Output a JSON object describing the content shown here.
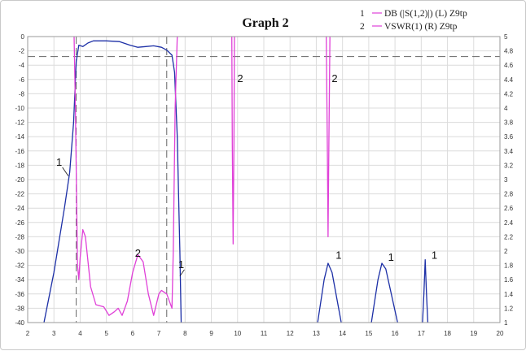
{
  "chart_data": {
    "type": "line",
    "title": "Graph 2",
    "xlim": [
      2,
      20
    ],
    "x_ticks": [
      2,
      3,
      4,
      5,
      6,
      7,
      8,
      9,
      10,
      11,
      12,
      13,
      14,
      15,
      16,
      17,
      18,
      19,
      20
    ],
    "y_left": {
      "lim": [
        -40,
        0
      ],
      "ticks": [
        0,
        -2,
        -4,
        -6,
        -8,
        -10,
        -12,
        -14,
        -16,
        -18,
        -20,
        -22,
        -24,
        -26,
        -28,
        -30,
        -32,
        -34,
        -36,
        -38,
        -40
      ]
    },
    "y_right": {
      "lim": [
        1,
        5
      ],
      "ticks": [
        5,
        4.8,
        4.6,
        4.4,
        4.2,
        4,
        3.8,
        3.6,
        3.4,
        3.2,
        3,
        2.8,
        2.6,
        2.4,
        2.2,
        2,
        1.8,
        1.6,
        1.4,
        1.2,
        1
      ]
    },
    "grid": true,
    "legend_position": "top-right",
    "legend": [
      {
        "number": "1",
        "label": "DB (|S(1,2)|) (L) Z9tp"
      },
      {
        "number": "2",
        "label": "VSWR(1) (R) Z9tp"
      }
    ],
    "colors": {
      "series1": "#1c2fa6",
      "series2": "#e040d8",
      "reference": "#666666",
      "grid": "#dcdcdc"
    },
    "reference_lines": {
      "horizontal_left_db": -2.8,
      "vertical_x": [
        3.85,
        7.3
      ]
    },
    "series": [
      {
        "name": "DB (|S(1,2)|) (L) Z9tp",
        "axis": "left",
        "segments": [
          [
            [
              2.62,
              -40
            ],
            [
              3.0,
              -33
            ],
            [
              3.4,
              -24
            ],
            [
              3.6,
              -19
            ],
            [
              3.75,
              -12
            ],
            [
              3.85,
              -3.5
            ],
            [
              3.95,
              -1.2
            ],
            [
              4.1,
              -1.4
            ],
            [
              4.3,
              -0.9
            ],
            [
              4.5,
              -0.6
            ],
            [
              5.0,
              -0.6
            ],
            [
              5.5,
              -0.7
            ],
            [
              5.9,
              -1.2
            ],
            [
              6.2,
              -1.5
            ],
            [
              6.5,
              -1.4
            ],
            [
              6.8,
              -1.3
            ],
            [
              7.1,
              -1.5
            ],
            [
              7.3,
              -1.9
            ],
            [
              7.5,
              -2.6
            ],
            [
              7.6,
              -5
            ],
            [
              7.7,
              -14
            ],
            [
              7.8,
              -30
            ],
            [
              7.85,
              -40
            ]
          ],
          [
            [
              13.05,
              -40
            ],
            [
              13.3,
              -34
            ],
            [
              13.45,
              -31.7
            ],
            [
              13.6,
              -33
            ],
            [
              13.95,
              -40
            ]
          ],
          [
            [
              15.1,
              -40
            ],
            [
              15.35,
              -34
            ],
            [
              15.5,
              -31.7
            ],
            [
              15.65,
              -32.5
            ],
            [
              16.1,
              -40
            ]
          ],
          [
            [
              17.05,
              -40
            ],
            [
              17.1,
              -36
            ],
            [
              17.15,
              -31.2
            ],
            [
              17.2,
              -36
            ],
            [
              17.25,
              -40
            ]
          ]
        ]
      },
      {
        "name": "VSWR(1) (R) Z9tp",
        "axis": "right",
        "segments": [
          [
            [
              3.77,
              5
            ],
            [
              3.82,
              4.0
            ],
            [
              3.9,
              1.8
            ],
            [
              3.95,
              1.6
            ],
            [
              4.0,
              1.9
            ],
            [
              4.1,
              2.3
            ],
            [
              4.2,
              2.2
            ],
            [
              4.4,
              1.5
            ],
            [
              4.6,
              1.25
            ],
            [
              4.9,
              1.22
            ],
            [
              5.1,
              1.1
            ],
            [
              5.3,
              1.15
            ],
            [
              5.45,
              1.2
            ],
            [
              5.6,
              1.1
            ],
            [
              5.8,
              1.3
            ],
            [
              6.0,
              1.7
            ],
            [
              6.2,
              1.95
            ],
            [
              6.4,
              1.85
            ],
            [
              6.6,
              1.4
            ],
            [
              6.8,
              1.1
            ],
            [
              7.0,
              1.4
            ],
            [
              7.1,
              1.45
            ],
            [
              7.3,
              1.4
            ],
            [
              7.5,
              1.2
            ],
            [
              7.55,
              2.0
            ],
            [
              7.62,
              4.0
            ],
            [
              7.7,
              5
            ]
          ],
          [
            [
              9.78,
              5
            ],
            [
              9.8,
              3.5
            ],
            [
              9.83,
              2.1
            ],
            [
              9.86,
              3.5
            ],
            [
              9.88,
              5
            ]
          ],
          [
            [
              13.38,
              5
            ],
            [
              13.42,
              3.5
            ],
            [
              13.45,
              2.2
            ],
            [
              13.48,
              3.5
            ],
            [
              13.52,
              5
            ]
          ]
        ]
      }
    ],
    "annotations": [
      {
        "text": "1",
        "x": 3.2,
        "y_left": -17.5,
        "pointer_to": [
          3.55,
          -19.5
        ]
      },
      {
        "text": "2",
        "x": 6.2,
        "y_left": -30.2
      },
      {
        "text": "1",
        "x": 7.85,
        "y_left": -31.8,
        "pointer_to": [
          7.8,
          -33.5
        ]
      },
      {
        "text": "2",
        "x": 10.1,
        "y_left": -5.8
      },
      {
        "text": "2",
        "x": 13.7,
        "y_left": -5.8
      },
      {
        "text": "1",
        "x": 13.85,
        "y_left": -30.5
      },
      {
        "text": "1",
        "x": 15.85,
        "y_left": -30.8
      },
      {
        "text": "1",
        "x": 17.5,
        "y_left": -30.5
      }
    ]
  }
}
